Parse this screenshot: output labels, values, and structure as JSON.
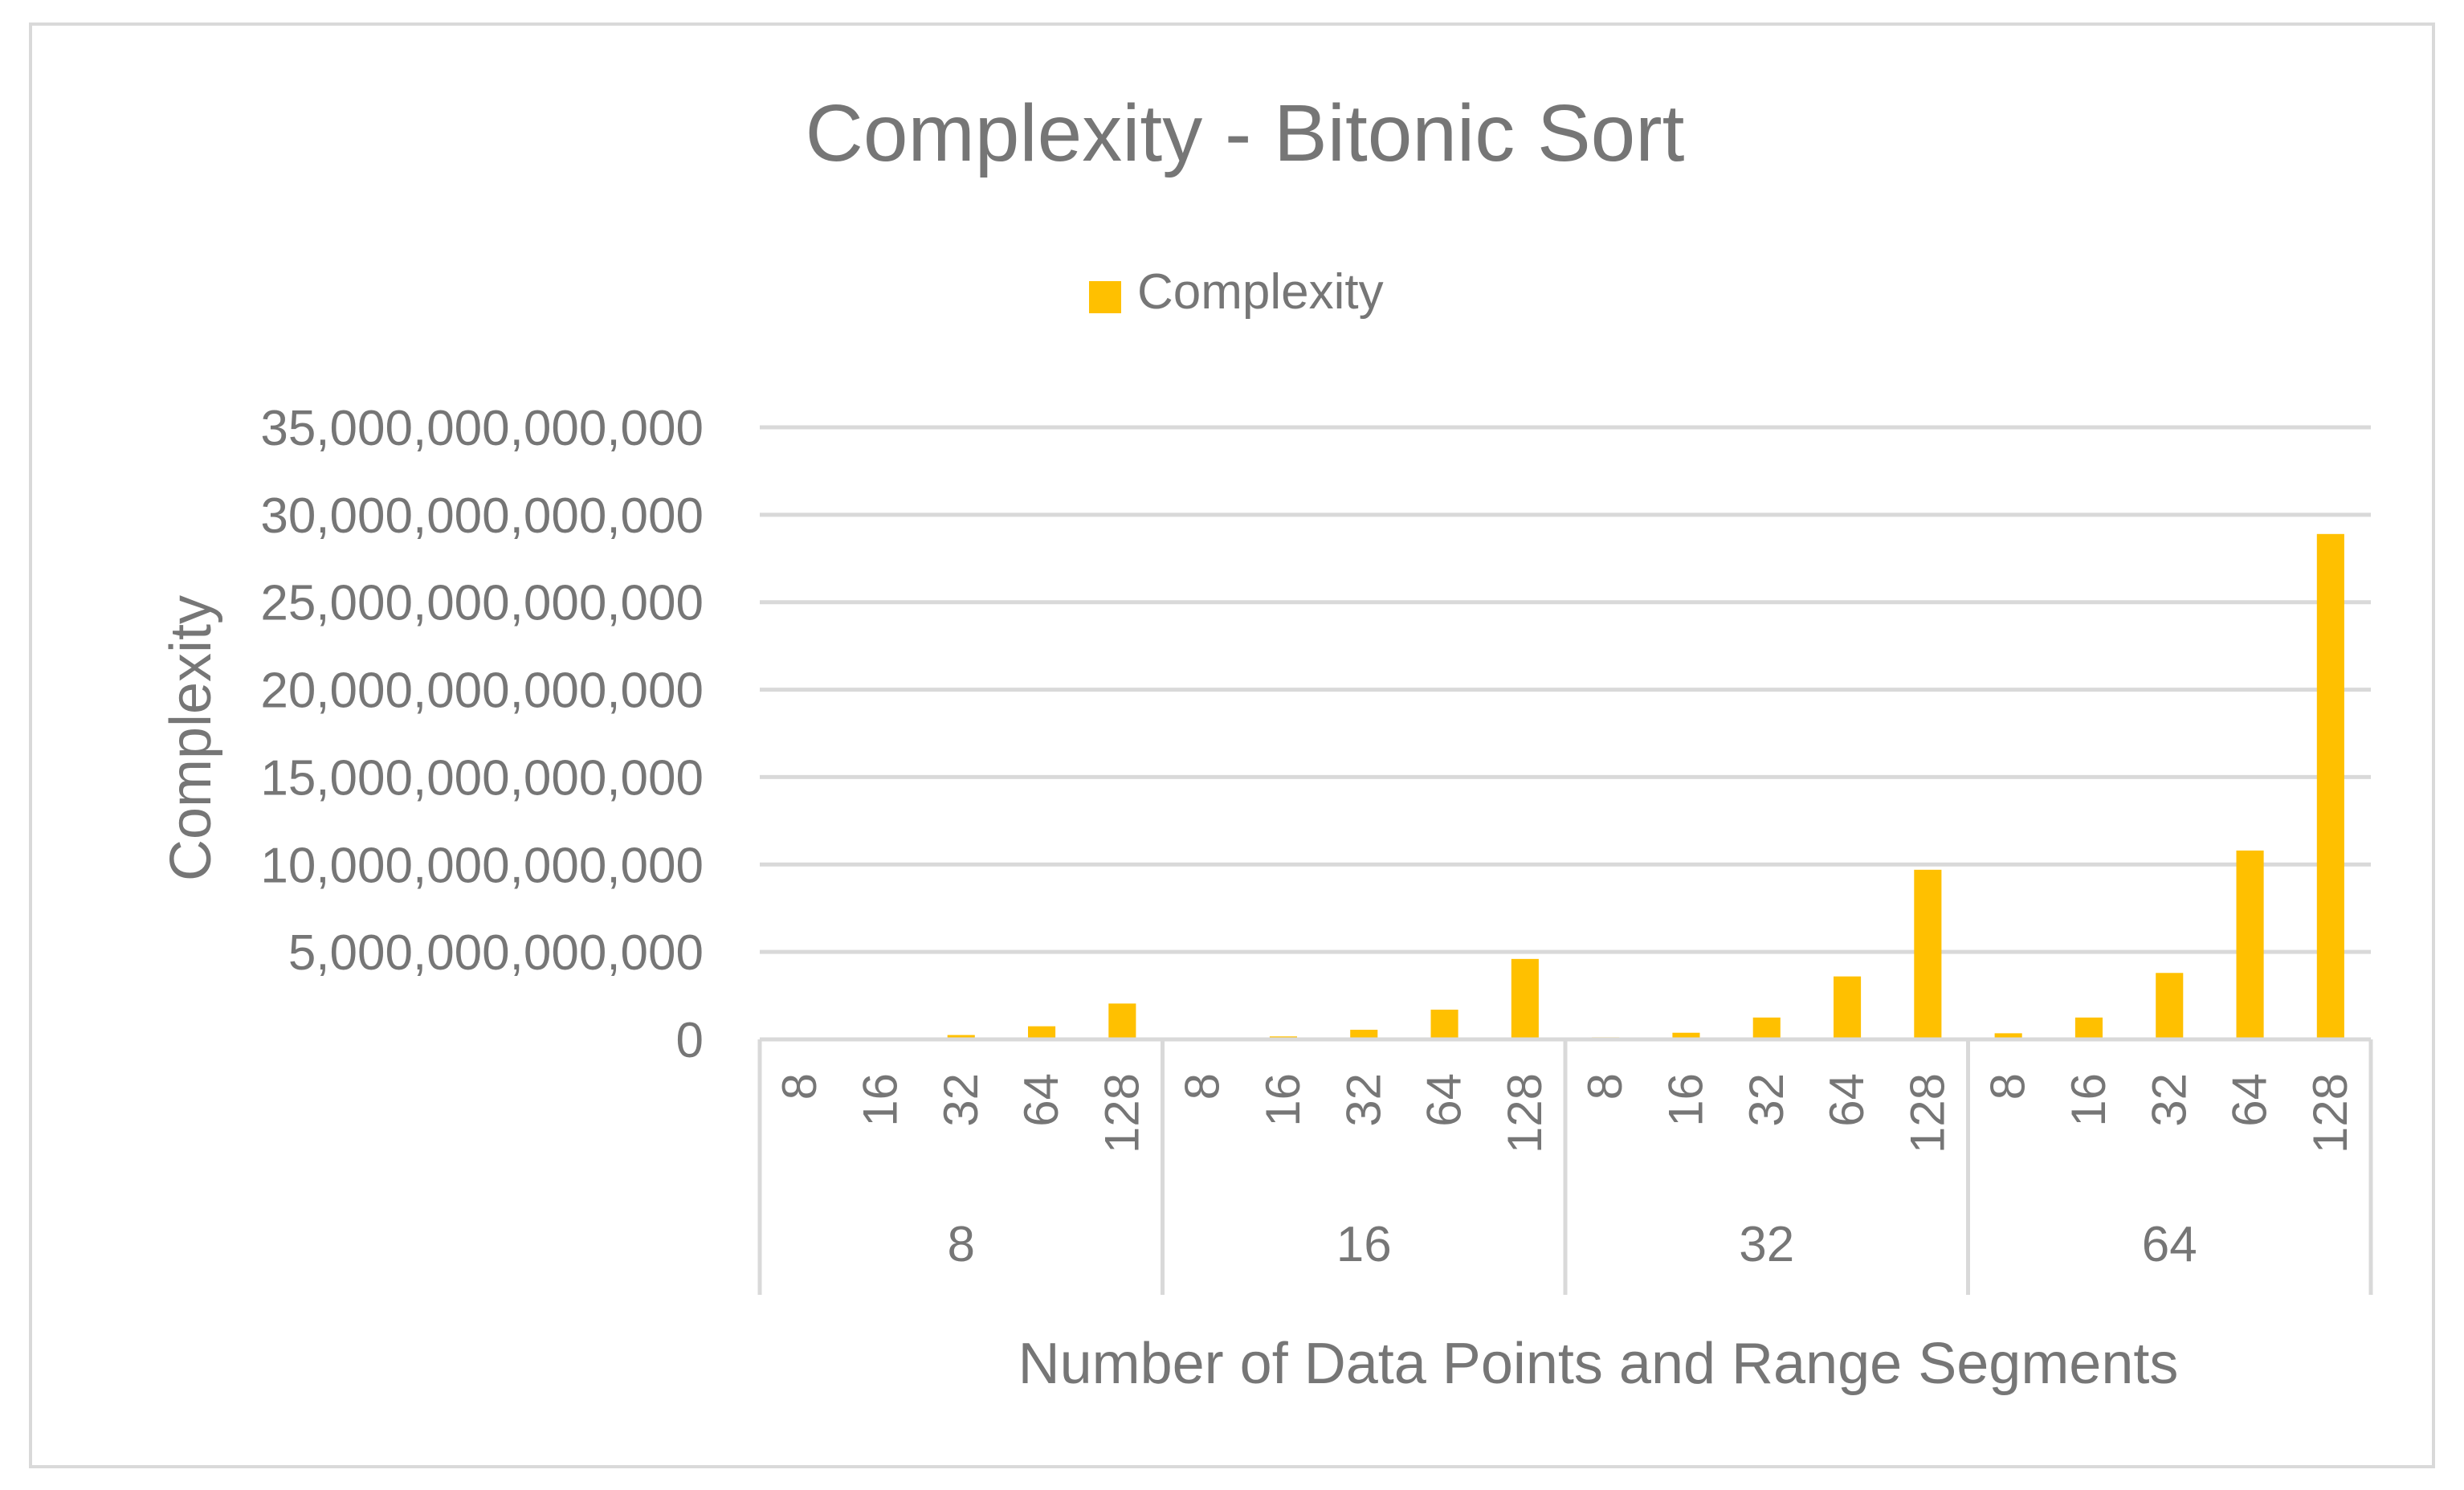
{
  "chart_data": {
    "type": "bar",
    "title": "Complexity - Bitonic Sort",
    "xlabel": "Number of Data Points and Range Segments",
    "ylabel": "Complexity",
    "legend": {
      "position": "top",
      "entries": [
        "Complexity"
      ]
    },
    "grid": true,
    "ylim": [
      0,
      35000000000000
    ],
    "yticks": [
      {
        "value": 0,
        "label": "0"
      },
      {
        "value": 5000000000000,
        "label": "5,000,000,000,000"
      },
      {
        "value": 10000000000000,
        "label": "10,000,000,000,000"
      },
      {
        "value": 15000000000000,
        "label": "15,000,000,000,000"
      },
      {
        "value": 20000000000000,
        "label": "20,000,000,000,000"
      },
      {
        "value": 25000000000000,
        "label": "25,000,000,000,000"
      },
      {
        "value": 30000000000000,
        "label": "30,000,000,000,000"
      },
      {
        "value": 35000000000000,
        "label": "35,000,000,000,000"
      }
    ],
    "groups": [
      {
        "label": "8",
        "categories": [
          "8",
          "16",
          "32",
          "64",
          "128"
        ]
      },
      {
        "label": "16",
        "categories": [
          "8",
          "16",
          "32",
          "64",
          "128"
        ]
      },
      {
        "label": "32",
        "categories": [
          "8",
          "16",
          "32",
          "64",
          "128"
        ]
      },
      {
        "label": "64",
        "categories": [
          "8",
          "16",
          "32",
          "64",
          "128"
        ]
      }
    ],
    "series": [
      {
        "name": "Complexity",
        "color": "#FFC000",
        "values": [
          20000000000,
          70000000000,
          250000000000,
          750000000000,
          2050000000000,
          50000000000,
          170000000000,
          550000000000,
          1700000000000,
          4600000000000,
          120000000000,
          380000000000,
          1250000000000,
          3600000000000,
          9700000000000,
          350000000000,
          1250000000000,
          3800000000000,
          10800000000000,
          28900000000000
        ]
      }
    ]
  }
}
